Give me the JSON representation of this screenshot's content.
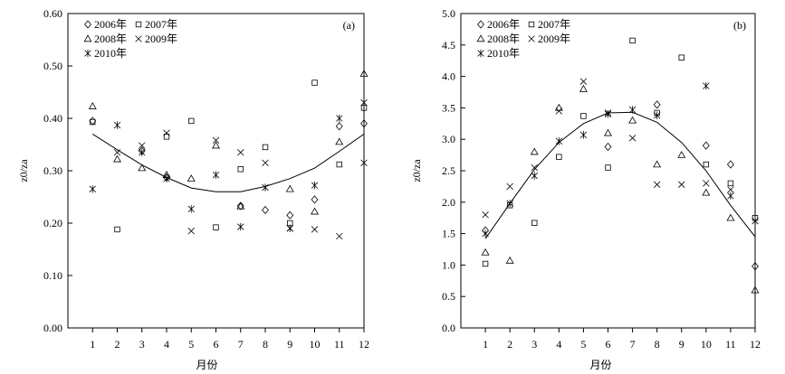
{
  "chart_data": [
    {
      "type": "scatter",
      "panel_label": "(a)",
      "xlabel": "月份",
      "ylabel": "z0/za",
      "x_ticks": [
        1,
        2,
        3,
        4,
        5,
        6,
        7,
        8,
        9,
        10,
        11,
        12
      ],
      "y_ticks": [
        "0.00",
        "0.10",
        "0.20",
        "0.30",
        "0.40",
        "0.50",
        "0.60"
      ],
      "xlim": [
        0,
        12
      ],
      "ylim": [
        0,
        0.6
      ],
      "grid": false,
      "legend_position": "top-left",
      "series": [
        {
          "name": "2006年",
          "marker": "diamond",
          "x": [
            1,
            3,
            4,
            7,
            8,
            9,
            10,
            11,
            12
          ],
          "y": [
            0.395,
            0.338,
            0.287,
            0.233,
            0.225,
            0.215,
            0.245,
            0.385,
            0.39
          ]
        },
        {
          "name": "2007年",
          "marker": "square",
          "x": [
            1,
            2,
            4,
            5,
            6,
            7,
            8,
            9,
            10,
            11,
            12
          ],
          "y": [
            0.393,
            0.188,
            0.365,
            0.395,
            0.192,
            0.303,
            0.345,
            0.2,
            0.468,
            0.312,
            0.42
          ]
        },
        {
          "name": "2008年",
          "marker": "triangle",
          "x": [
            1,
            2,
            3,
            4,
            5,
            6,
            7,
            9,
            10,
            11,
            12
          ],
          "y": [
            0.423,
            0.322,
            0.305,
            0.292,
            0.285,
            0.348,
            0.232,
            0.265,
            0.222,
            0.355,
            0.485
          ]
        },
        {
          "name": "2009年",
          "marker": "x",
          "x": [
            2,
            3,
            4,
            5,
            6,
            7,
            8,
            9,
            10,
            11
          ],
          "y": [
            0.335,
            0.348,
            0.372,
            0.185,
            0.358,
            0.335,
            0.315,
            0.19,
            0.188,
            0.175
          ]
        },
        {
          "name": "2010年",
          "marker": "asterisk",
          "x": [
            1,
            2,
            3,
            4,
            5,
            6,
            7,
            8,
            9,
            10,
            11,
            12,
            12
          ],
          "y": [
            0.265,
            0.387,
            0.335,
            0.285,
            0.227,
            0.292,
            0.193,
            0.268,
            0.19,
            0.272,
            0.4,
            0.43,
            0.315
          ]
        }
      ],
      "fit_line": {
        "x": [
          1,
          2,
          3,
          4,
          5,
          6,
          7,
          8,
          9,
          10,
          11,
          12
        ],
        "y": [
          0.37,
          0.34,
          0.311,
          0.287,
          0.267,
          0.26,
          0.26,
          0.27,
          0.285,
          0.305,
          0.337,
          0.37
        ]
      }
    },
    {
      "type": "scatter",
      "panel_label": "(b)",
      "xlabel": "月份",
      "ylabel": "z0/za",
      "x_ticks": [
        1,
        2,
        3,
        4,
        5,
        6,
        7,
        8,
        9,
        10,
        11,
        12
      ],
      "y_ticks": [
        "0.0",
        "0.5",
        "1.0",
        "1.5",
        "2.0",
        "2.5",
        "3.0",
        "3.5",
        "4.0",
        "4.5",
        "5.0"
      ],
      "xlim": [
        0,
        12
      ],
      "ylim": [
        0,
        5
      ],
      "grid": false,
      "legend_position": "top-left",
      "series": [
        {
          "name": "2006年",
          "marker": "diamond",
          "x": [
            1,
            6,
            8,
            10,
            11,
            12
          ],
          "y": [
            1.55,
            2.88,
            3.55,
            2.9,
            2.6,
            0.98
          ]
        },
        {
          "name": "2007年",
          "marker": "square",
          "x": [
            1,
            2,
            3,
            4,
            5,
            6,
            7,
            8,
            9,
            10,
            11,
            12
          ],
          "y": [
            1.02,
            1.95,
            1.67,
            2.72,
            3.37,
            2.55,
            4.57,
            3.42,
            4.3,
            2.6,
            2.3,
            1.75
          ]
        },
        {
          "name": "2008年",
          "marker": "triangle",
          "x": [
            1,
            2,
            3,
            4,
            5,
            6,
            7,
            8,
            9,
            10,
            11,
            12
          ],
          "y": [
            1.2,
            1.07,
            2.8,
            3.5,
            3.8,
            3.1,
            3.3,
            2.6,
            2.75,
            2.15,
            1.75,
            0.6
          ]
        },
        {
          "name": "2009年",
          "marker": "x",
          "x": [
            1,
            2,
            3,
            4,
            5,
            6,
            7,
            8,
            9,
            10,
            11
          ],
          "y": [
            1.8,
            2.25,
            2.55,
            3.45,
            3.92,
            3.42,
            3.02,
            2.28,
            2.28,
            2.3,
            2.2
          ]
        },
        {
          "name": "2010年",
          "marker": "asterisk",
          "x": [
            1,
            2,
            3,
            4,
            5,
            6,
            7,
            8,
            10,
            11,
            12
          ],
          "y": [
            1.5,
            1.98,
            2.42,
            2.97,
            3.07,
            3.4,
            3.47,
            3.38,
            3.85,
            2.1,
            1.7
          ]
        }
      ],
      "fit_line": {
        "x": [
          1,
          2,
          3,
          4,
          5,
          6,
          7,
          8,
          9,
          10,
          11,
          12
        ],
        "y": [
          1.42,
          1.98,
          2.52,
          2.95,
          3.25,
          3.42,
          3.43,
          3.27,
          2.95,
          2.5,
          1.95,
          1.45
        ]
      }
    }
  ]
}
